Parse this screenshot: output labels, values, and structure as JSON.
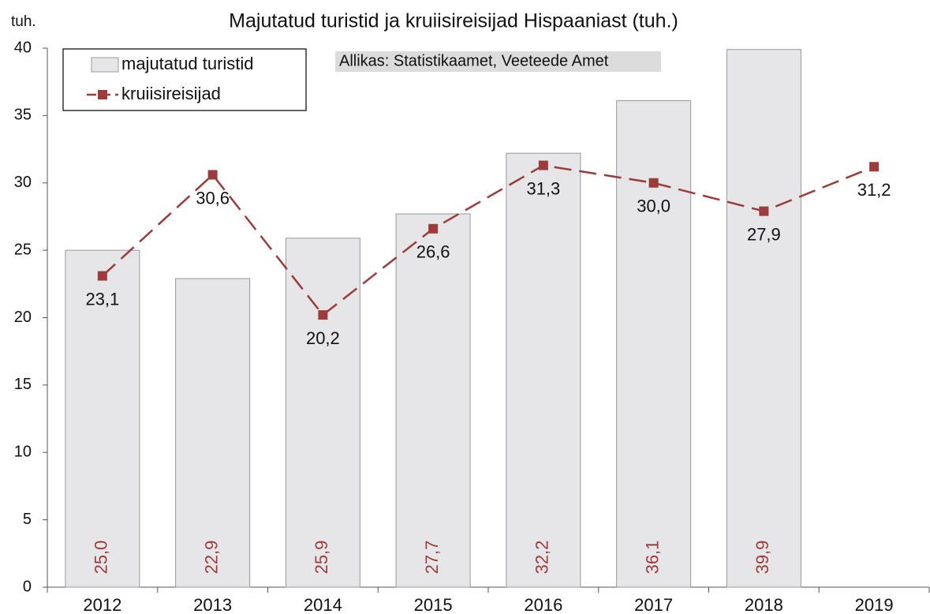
{
  "chart_data": {
    "type": "bar_line",
    "title": "Majutatud turistid ja kruiisireisijad Hispaaniast (tuh.)",
    "y_axis_label": "tuh.",
    "annotation": "Allikas: Statistikaamet, Veeteede Amet",
    "categories": [
      "2012",
      "2013",
      "2014",
      "2015",
      "2016",
      "2017",
      "2018",
      "2019"
    ],
    "series": [
      {
        "name": "majutatud turistid",
        "type": "bar",
        "color": "#e6e6e8",
        "values": [
          25.0,
          22.9,
          25.9,
          27.7,
          32.2,
          36.1,
          39.9,
          null
        ],
        "value_labels": [
          "25,0",
          "22,9",
          "25,9",
          "27,7",
          "32,2",
          "36,1",
          "39,9",
          null
        ]
      },
      {
        "name": "kruiisireisijad",
        "type": "line",
        "color": "#9b3b3b",
        "values": [
          23.1,
          30.6,
          20.2,
          26.6,
          31.3,
          30.0,
          27.9,
          31.2
        ],
        "value_labels": [
          "23,1",
          "30,6",
          "20,2",
          "26,6",
          "31,3",
          "30,0",
          "27,9",
          "31,2"
        ]
      }
    ],
    "ylim": [
      0,
      40
    ],
    "yticks": [
      0,
      5,
      10,
      15,
      20,
      25,
      30,
      35,
      40
    ],
    "grid": false
  }
}
